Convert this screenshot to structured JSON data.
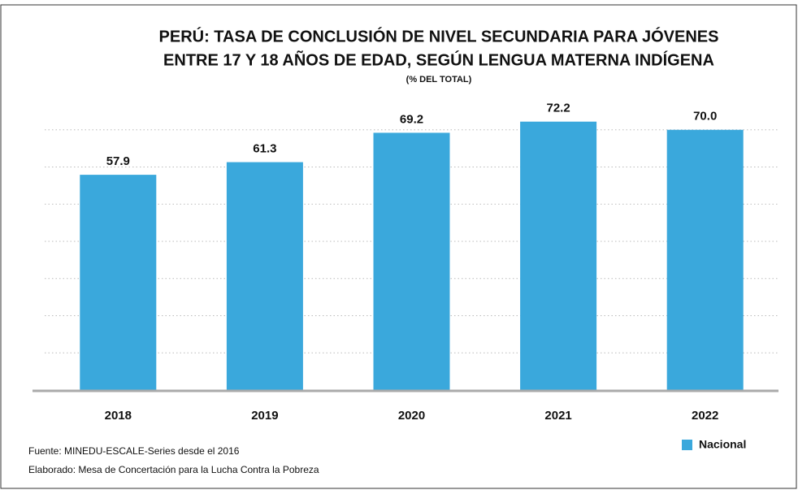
{
  "chart_data": {
    "type": "bar",
    "title": [
      "PERÚ: TASA DE CONCLUSIÓN DE NIVEL SECUNDARIA PARA JÓVENES",
      "ENTRE 17 Y 18 AÑOS DE EDAD, SEGÚN LENGUA MATERNA INDÍGENA"
    ],
    "subtitle": "(% DEL TOTAL)",
    "categories": [
      "2018",
      "2019",
      "2020",
      "2021",
      "2022"
    ],
    "series": [
      {
        "name": "Nacional",
        "color": "#3aa8dc",
        "values": [
          57.9,
          61.3,
          69.2,
          72.2,
          70.0
        ],
        "value_labels": [
          "57.9",
          "61.3",
          "69.2",
          "72.2",
          "70.0"
        ]
      }
    ],
    "ylim": [
      0,
      80
    ],
    "yticks": [
      0,
      10,
      20,
      30,
      40,
      50,
      60,
      70
    ],
    "grid": true,
    "legend": "bottom-right",
    "notes": [
      "Fuente: MINEDU-ESCALE-Series desde el 2016",
      "Elaborado: Mesa de Concertación para la Lucha Contra la Pobreza"
    ]
  }
}
